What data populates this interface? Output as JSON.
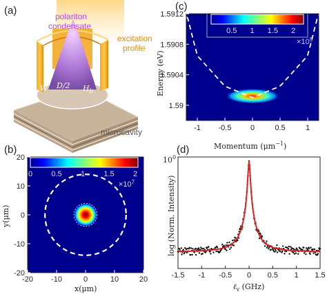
{
  "panels": {
    "a": {
      "tag": "(a)",
      "labels": {
        "polariton_1": "polariton",
        "polariton_2": "condensate",
        "excitation_1": "excitation",
        "excitation_2": "profile",
        "microcavity": "microcavity"
      },
      "dims": {
        "H": "H",
        "Hb": "H",
        "Hb_sub": "b",
        "W": "W",
        "D2": "D/2"
      }
    },
    "b": {
      "tag": "(b)",
      "colorbar": {
        "ticks": [
          "0",
          "0.5",
          "1",
          "1.5",
          "2"
        ],
        "multiplier_base": "×10",
        "multiplier_exp": "7"
      },
      "xlabel": "x(μm)",
      "ylabel": "y(μm)",
      "xticks": [
        "-20",
        "-10",
        "0",
        "10",
        "20"
      ],
      "yticks": [
        "20",
        "10",
        "0",
        "-10",
        "-20"
      ]
    },
    "c": {
      "tag": "(c)",
      "colorbar": {
        "ticks": [
          "0.5",
          "1",
          "1.5",
          "2"
        ],
        "multiplier_base": "×10",
        "multiplier_exp": "5"
      },
      "xlabel_main": "Momentum (μm",
      "xlabel_exp": "−1",
      "xlabel_close": ")",
      "ylabel": "Energy (eV)",
      "xticks": [
        "-1",
        "-0.5",
        "0",
        "0.5",
        "1"
      ],
      "yticks": [
        "1.5912",
        "1.5908",
        "1.5904",
        "1.59"
      ]
    },
    "d": {
      "tag": "(d)",
      "xlabel_main": "ℓ",
      "xlabel_sub": "v",
      "xlabel_unit": " (GHz)",
      "ylabel": "log (Norm. Intensity)",
      "xticks": [
        "-1.5",
        "-1",
        "-0.5",
        "0",
        "0.5",
        "1",
        "1.5"
      ],
      "ytop_base": "10",
      "ytop_exp": "0"
    }
  },
  "colors": {
    "jet_dark_blue": "#00008f",
    "line_red": "#e02020",
    "data_black": "#111111",
    "orange": "#f0a020"
  },
  "chart_data": [
    {
      "type": "heatmap",
      "panel": "b",
      "xlim": [
        -20,
        20
      ],
      "ylim": [
        -20,
        20
      ],
      "colorbar_range": [
        0,
        20000000
      ],
      "spot": {
        "x_center": 0,
        "y_center": 0,
        "radius": 2.5,
        "peak": 20000000
      },
      "circles": [
        {
          "style": "dashed",
          "radius": 14
        },
        {
          "style": "dashed",
          "radius": 4
        }
      ]
    },
    {
      "type": "heatmap",
      "panel": "c",
      "xlim": [
        -1.2,
        1.2
      ],
      "ylim": [
        1.5898,
        1.5912
      ],
      "colorbar_range": [
        0,
        200000
      ],
      "dispersion_curve": {
        "style": "dashed",
        "k": [
          -1.3,
          -1.0,
          -0.5,
          0,
          0.5,
          1.0,
          1.3
        ],
        "E": [
          1.5915,
          1.59065,
          1.59025,
          1.5901,
          1.59025,
          1.59065,
          1.5915
        ]
      },
      "emission": {
        "k_range": [
          -0.45,
          0.45
        ],
        "E_center": 1.59012,
        "peak": 200000
      }
    },
    {
      "type": "line",
      "panel": "d",
      "xlim": [
        -1.5,
        1.5
      ],
      "series": [
        {
          "style": "dots",
          "color": "#111111"
        },
        {
          "style": "fit",
          "color": "#e02020"
        }
      ],
      "center": 0,
      "ytop": 1
    }
  ]
}
